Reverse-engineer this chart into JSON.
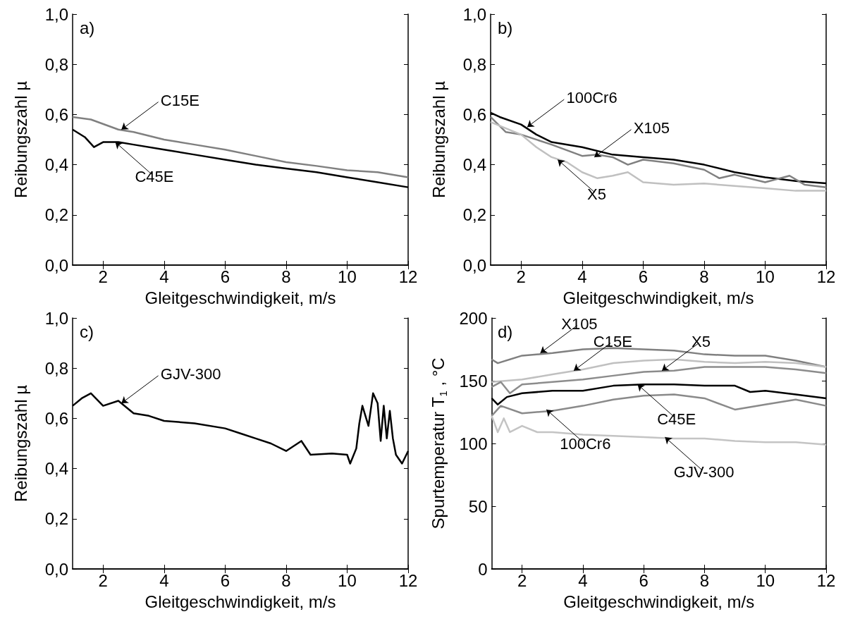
{
  "chart_data": [
    {
      "type": "line",
      "title": "a)",
      "xlabel": "Gleitgeschwindigkeit, m/s",
      "ylabel": "Reibungszahl µ",
      "xlim": [
        1,
        12
      ],
      "ylim": [
        0,
        1
      ],
      "xticks": [
        2,
        4,
        6,
        8,
        10,
        12
      ],
      "yticks": [
        {
          "value": 0,
          "label": "0,0"
        },
        {
          "value": 0.2,
          "label": "0,2"
        },
        {
          "value": 0.4,
          "label": "0,4"
        },
        {
          "value": 0.6,
          "label": "0,6"
        },
        {
          "value": 0.8,
          "label": "0,8"
        },
        {
          "value": 1,
          "label": "1,0"
        }
      ],
      "series": [
        {
          "color": "#808080",
          "x": [
            1,
            1.6,
            2.5,
            3,
            4,
            5,
            6,
            7,
            8,
            9,
            10,
            11,
            12
          ],
          "values": [
            0.59,
            0.58,
            0.54,
            0.53,
            0.5,
            0.48,
            0.46,
            0.435,
            0.41,
            0.395,
            0.378,
            0.37,
            0.35
          ]
        },
        {
          "color": "#000000",
          "x": [
            1,
            1.4,
            1.7,
            2,
            2.5,
            3,
            4,
            5,
            6,
            7,
            8,
            9,
            10,
            11,
            12
          ],
          "values": [
            0.54,
            0.51,
            0.47,
            0.49,
            0.49,
            0.48,
            0.46,
            0.44,
            0.42,
            0.4,
            0.385,
            0.37,
            0.35,
            0.33,
            0.31
          ]
        }
      ],
      "annotations": [
        {
          "text": "C15E",
          "x": 2.6,
          "y": 0.54
        },
        {
          "text": "C45E",
          "x": 2.4,
          "y": 0.49
        }
      ]
    },
    {
      "type": "line",
      "title": "b)",
      "xlabel": "Gleitgeschwindigkeit, m/s",
      "ylabel": "Reibungszahl µ",
      "xlim": [
        1,
        12
      ],
      "ylim": [
        0,
        1
      ],
      "xticks": [
        2,
        4,
        6,
        8,
        10,
        12
      ],
      "yticks": [
        {
          "value": 0,
          "label": "0,0"
        },
        {
          "value": 0.2,
          "label": "0,2"
        },
        {
          "value": 0.4,
          "label": "0,4"
        },
        {
          "value": 0.6,
          "label": "0,6"
        },
        {
          "value": 0.8,
          "label": "0,8"
        },
        {
          "value": 1,
          "label": "1,0"
        }
      ],
      "series": [
        {
          "color": "#000000",
          "x": [
            1,
            1.3,
            2,
            2.5,
            3,
            4,
            5,
            6,
            7,
            8,
            9,
            10,
            11,
            12
          ],
          "values": [
            0.607,
            0.59,
            0.56,
            0.52,
            0.49,
            0.47,
            0.44,
            0.43,
            0.42,
            0.4,
            0.37,
            0.35,
            0.335,
            0.326
          ]
        },
        {
          "color": "#808080",
          "x": [
            1,
            1.5,
            2,
            3,
            4,
            4.5,
            5,
            5.5,
            6,
            7,
            8,
            8.5,
            9,
            10,
            10.8,
            11.3,
            12
          ],
          "values": [
            0.59,
            0.53,
            0.52,
            0.48,
            0.435,
            0.44,
            0.43,
            0.4,
            0.42,
            0.405,
            0.38,
            0.346,
            0.36,
            0.33,
            0.356,
            0.32,
            0.31
          ]
        },
        {
          "color": "#c0c0c0",
          "x": [
            1,
            2,
            2.5,
            3,
            3.5,
            4,
            4.5,
            5,
            5.5,
            6,
            7,
            8,
            9,
            10,
            11,
            12
          ],
          "values": [
            0.57,
            0.52,
            0.47,
            0.43,
            0.41,
            0.37,
            0.346,
            0.356,
            0.37,
            0.33,
            0.32,
            0.325,
            0.315,
            0.306,
            0.296,
            0.296
          ]
        }
      ],
      "annotations": [
        {
          "text": "100Cr6",
          "x": 2.2,
          "y": 0.55
        },
        {
          "text": "X105",
          "x": 4.4,
          "y": 0.43
        },
        {
          "text": "X5",
          "x": 3.2,
          "y": 0.42
        }
      ]
    },
    {
      "type": "line",
      "title": "c)",
      "xlabel": "Gleitgeschwindigkeit, m/s",
      "ylabel": "Reibungszahl µ",
      "xlim": [
        1,
        12
      ],
      "ylim": [
        0,
        1
      ],
      "xticks": [
        2,
        4,
        6,
        8,
        10,
        12
      ],
      "yticks": [
        {
          "value": 0,
          "label": "0,0"
        },
        {
          "value": 0.2,
          "label": "0,2"
        },
        {
          "value": 0.4,
          "label": "0,4"
        },
        {
          "value": 0.6,
          "label": "0,6"
        },
        {
          "value": 0.8,
          "label": "0,8"
        },
        {
          "value": 1,
          "label": "1,0"
        }
      ],
      "series": [
        {
          "color": "#000000",
          "x": [
            1,
            1.3,
            1.6,
            2,
            2.5,
            3,
            3.5,
            4,
            5,
            6,
            6.5,
            7,
            7.5,
            8,
            8.5,
            8.8,
            9.5,
            10,
            10.1,
            10.3,
            10.4,
            10.5,
            10.7,
            10.85,
            11,
            11.1,
            11.2,
            11.3,
            11.4,
            11.5,
            11.6,
            11.8,
            12
          ],
          "values": [
            0.65,
            0.68,
            0.7,
            0.65,
            0.67,
            0.62,
            0.61,
            0.59,
            0.58,
            0.56,
            0.54,
            0.52,
            0.5,
            0.47,
            0.51,
            0.455,
            0.46,
            0.455,
            0.42,
            0.48,
            0.58,
            0.65,
            0.57,
            0.7,
            0.66,
            0.51,
            0.65,
            0.52,
            0.63,
            0.52,
            0.455,
            0.42,
            0.47
          ]
        }
      ],
      "annotations": [
        {
          "text": "GJV-300",
          "x": 2.6,
          "y": 0.66
        }
      ]
    },
    {
      "type": "line",
      "title": "d)",
      "xlabel": "Gleitgeschwindigkeit, m/s",
      "ylabel": "Spurtemperatur T$_{1}$ , °C",
      "xlim": [
        1,
        12
      ],
      "ylim": [
        0,
        200
      ],
      "xticks": [
        2,
        4,
        6,
        8,
        10,
        12
      ],
      "yticks": [
        0,
        50,
        100,
        150,
        200
      ],
      "series": [
        {
          "color": "#808080",
          "x": [
            1,
            1.2,
            2,
            3,
            4,
            5,
            6,
            7,
            8,
            9,
            10,
            11,
            12
          ],
          "values": [
            167,
            164,
            170,
            172,
            175,
            176,
            175,
            174,
            171,
            170,
            170,
            166,
            161
          ]
        },
        {
          "color": "#c0c0c0",
          "x": [
            1,
            2,
            3,
            4,
            5,
            6,
            7,
            8,
            9,
            10,
            11,
            12
          ],
          "values": [
            149,
            151,
            155,
            159,
            164,
            166,
            167,
            165,
            164,
            165,
            164,
            161
          ]
        },
        {
          "color": "#8c8c8c",
          "x": [
            1,
            1.3,
            1.6,
            2,
            3,
            4,
            5,
            6,
            7,
            8,
            9,
            10,
            11,
            12
          ],
          "values": [
            145,
            149,
            140,
            147,
            149,
            151,
            154,
            157,
            158,
            161,
            161,
            161,
            159,
            156
          ]
        },
        {
          "color": "#000000",
          "x": [
            1,
            1.2,
            1.5,
            2,
            3,
            4,
            5,
            6,
            7,
            8,
            9,
            9.5,
            10,
            11,
            12
          ],
          "values": [
            136,
            131,
            137,
            140,
            142,
            142,
            146,
            147,
            147,
            146,
            146,
            141,
            142,
            139,
            136
          ]
        },
        {
          "color": "#8a8a8a",
          "x": [
            1,
            1.3,
            2,
            3,
            4,
            5,
            6,
            7,
            8,
            9,
            10,
            11,
            12
          ],
          "values": [
            122,
            130,
            124,
            126,
            130,
            135,
            138,
            139,
            136,
            127,
            131,
            135,
            130
          ]
        },
        {
          "color": "#c4c4c4",
          "x": [
            1,
            1.2,
            1.4,
            1.6,
            2,
            2.5,
            3,
            4,
            5,
            6,
            7,
            8,
            9,
            10,
            11,
            12
          ],
          "values": [
            122,
            109,
            120,
            109,
            114,
            109,
            109,
            107,
            106,
            105,
            104,
            104,
            102,
            101,
            101,
            99
          ]
        }
      ],
      "annotations": [
        {
          "text": "X105",
          "x": 2.6,
          "y": 172
        },
        {
          "text": "X5",
          "x": 6.6,
          "y": 158
        },
        {
          "text": "C15E",
          "x": 3.7,
          "y": 158
        },
        {
          "text": "C45E",
          "x": 5.8,
          "y": 147
        },
        {
          "text": "100Cr6",
          "x": 2.8,
          "y": 127
        },
        {
          "text": "GJV-300",
          "x": 6.7,
          "y": 105
        }
      ]
    }
  ]
}
